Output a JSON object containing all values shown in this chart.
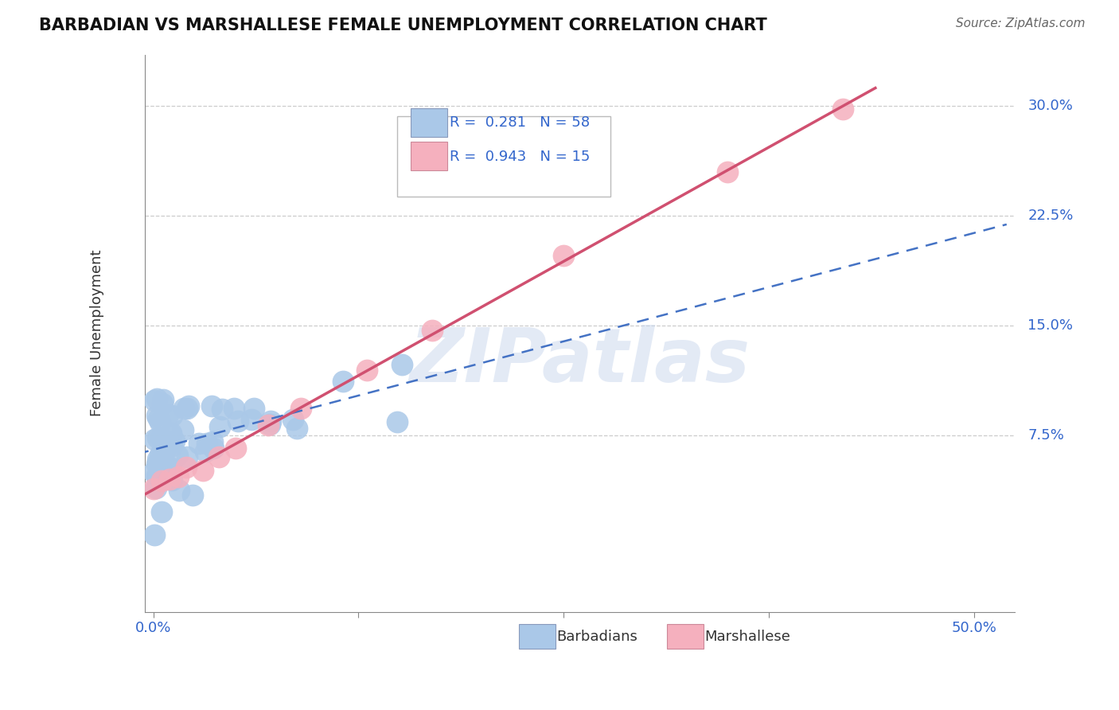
{
  "title": "BARBADIAN VS MARSHALLESE FEMALE UNEMPLOYMENT CORRELATION CHART",
  "source": "Source: ZipAtlas.com",
  "ylabel": "Female Unemployment",
  "xlim": [
    -0.005,
    0.525
  ],
  "ylim": [
    -0.045,
    0.335
  ],
  "xtick_positions": [
    0.0,
    0.125,
    0.25,
    0.375,
    0.5
  ],
  "xtick_labels": [
    "0.0%",
    "",
    "",
    "",
    "50.0%"
  ],
  "ytick_vals": [
    0.075,
    0.15,
    0.225,
    0.3
  ],
  "ytick_labels": [
    "7.5%",
    "15.0%",
    "22.5%",
    "30.0%"
  ],
  "grid_color": "#cccccc",
  "bg_color": "#ffffff",
  "barbadian_fill": "#aac8e8",
  "marshallese_fill": "#f5b0be",
  "barbadian_line": "#4472c4",
  "marshallese_line": "#d05070",
  "legend_label1": "R =  0.281   N = 58",
  "legend_label2": "R =  0.943   N = 15",
  "bottom_legend1": "Barbadians",
  "bottom_legend2": "Marshallese",
  "watermark": "ZIPatlas",
  "title_fontsize": 15,
  "axis_label_fontsize": 13,
  "tick_fontsize": 13,
  "legend_fontsize": 13
}
